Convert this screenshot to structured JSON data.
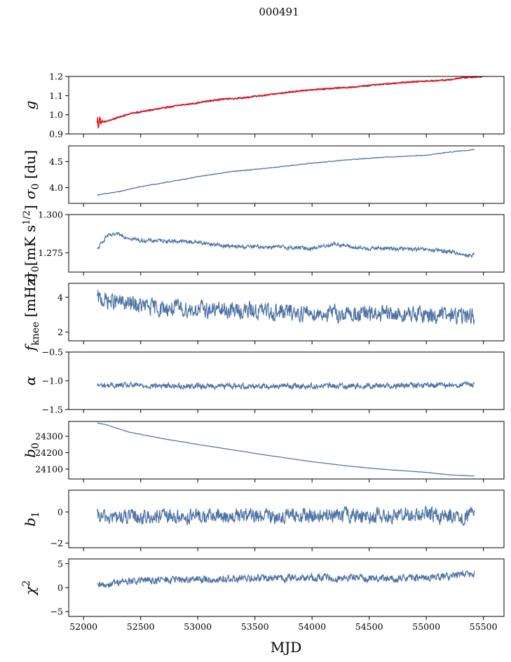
{
  "suptitle": "000491",
  "xlabel": "MJD",
  "x_ticks": [
    "52000",
    "52500",
    "53000",
    "53500",
    "54000",
    "54500",
    "55000",
    "55500"
  ],
  "colors": {
    "series": "#4c72a4",
    "overlay": "#ff0000",
    "axes": "#000000"
  },
  "chart_data": [
    {
      "type": "line",
      "ylabel": "g",
      "xlim": [
        51870,
        55680
      ],
      "ylim": [
        0.9,
        1.2
      ],
      "yticks": [
        "0.9",
        "1.0",
        "1.1",
        "1.2"
      ],
      "ytick_values": [
        0.9,
        1.0,
        1.1,
        1.2
      ],
      "series": [
        {
          "values_x": [
            52120,
            52200,
            52300,
            52400,
            52600,
            52800,
            53000,
            53200,
            53400,
            53600,
            53800,
            54000,
            54200,
            54400,
            54600,
            54800,
            55000,
            55200,
            55300,
            55420
          ],
          "values_y": [
            0.963,
            0.965,
            0.985,
            1.005,
            1.025,
            1.045,
            1.062,
            1.08,
            1.088,
            1.102,
            1.118,
            1.13,
            1.138,
            1.146,
            1.158,
            1.168,
            1.175,
            1.182,
            1.192,
            1.197
          ],
          "noise": 0.004
        },
        {
          "name": "",
          "style": "overlay",
          "values_x": [
            52120,
            52200,
            52300,
            52400,
            52600,
            52800,
            53000,
            53200,
            53400,
            53600,
            53800,
            54000,
            54200,
            54400,
            54600,
            54800,
            55000,
            55200,
            55300,
            55500
          ],
          "values_y": [
            0.963,
            0.966,
            0.986,
            1.005,
            1.026,
            1.046,
            1.063,
            1.081,
            1.089,
            1.103,
            1.119,
            1.131,
            1.139,
            1.147,
            1.159,
            1.169,
            1.176,
            1.183,
            1.193,
            1.198
          ],
          "noise": 0.003,
          "burst_x": 52140,
          "burst_amp": 0.035
        }
      ]
    },
    {
      "type": "line",
      "ylabel": "σ0 [du]",
      "xlim": [
        51870,
        55680
      ],
      "ylim": [
        3.7,
        4.8
      ],
      "yticks": [
        "4.0",
        "4.5"
      ],
      "ytick_values": [
        4.0,
        4.5
      ],
      "series": [
        {
          "values_x": [
            52120,
            52300,
            52500,
            52800,
            53000,
            53300,
            53600,
            54000,
            54300,
            54600,
            55000,
            55200,
            55420
          ],
          "values_y": [
            3.86,
            3.92,
            4.02,
            4.13,
            4.21,
            4.31,
            4.37,
            4.47,
            4.53,
            4.58,
            4.62,
            4.68,
            4.73
          ],
          "noise": 0.006
        }
      ]
    },
    {
      "type": "line",
      "ylabel": "σ0[mK s^1/2]",
      "xlim": [
        51870,
        55680
      ],
      "ylim": [
        1.2625,
        1.3
      ],
      "yticks": [
        "1.275",
        "1.300"
      ],
      "ytick_values": [
        1.275,
        1.3
      ],
      "series": [
        {
          "values_x": [
            52120,
            52200,
            52300,
            52500,
            52700,
            53000,
            53300,
            53600,
            54000,
            54200,
            54400,
            54700,
            55000,
            55200,
            55400,
            55420
          ],
          "values_y": [
            1.277,
            1.286,
            1.287,
            1.283,
            1.283,
            1.282,
            1.279,
            1.279,
            1.278,
            1.281,
            1.278,
            1.278,
            1.277,
            1.276,
            1.273,
            1.275
          ],
          "noise": 0.0012
        }
      ]
    },
    {
      "type": "line",
      "ylabel": "fknee [mHz]",
      "xlim": [
        51870,
        55680
      ],
      "ylim": [
        1.5,
        4.8
      ],
      "yticks": [
        "2",
        "4"
      ],
      "ytick_values": [
        2,
        4
      ],
      "series": [
        {
          "values_x": [
            52120,
            52300,
            52600,
            53000,
            53500,
            54000,
            54500,
            55000,
            55420
          ],
          "values_y": [
            3.9,
            3.7,
            3.4,
            3.3,
            3.2,
            3.1,
            3.0,
            3.0,
            2.9
          ],
          "noise": 0.45
        }
      ]
    },
    {
      "type": "line",
      "ylabel": "α",
      "xlim": [
        51870,
        55680
      ],
      "ylim": [
        -1.5,
        -0.5
      ],
      "yticks": [
        "−1.5",
        "−1.0",
        "−0.5"
      ],
      "ytick_values": [
        -1.5,
        -1.0,
        -0.5
      ],
      "series": [
        {
          "values_x": [
            52120,
            53000,
            54000,
            55000,
            55420
          ],
          "values_y": [
            -1.08,
            -1.09,
            -1.09,
            -1.08,
            -1.07
          ],
          "noise": 0.045
        }
      ]
    },
    {
      "type": "line",
      "ylabel": "b0",
      "xlim": [
        51870,
        55680
      ],
      "ylim": [
        24040,
        24390
      ],
      "yticks": [
        "24100",
        "24200",
        "24300"
      ],
      "ytick_values": [
        24100,
        24200,
        24300
      ],
      "series": [
        {
          "values_x": [
            52120,
            52200,
            52400,
            52700,
            53000,
            53300,
            53600,
            54000,
            54300,
            54600,
            55000,
            55200,
            55420
          ],
          "values_y": [
            24380,
            24370,
            24325,
            24285,
            24250,
            24218,
            24185,
            24145,
            24120,
            24100,
            24080,
            24065,
            24058
          ],
          "noise": 0.8
        }
      ]
    },
    {
      "type": "line",
      "ylabel": "b1",
      "xlim": [
        51870,
        55680
      ],
      "ylim": [
        -2.3,
        1.4
      ],
      "yticks": [
        "−2",
        "0"
      ],
      "ytick_values": [
        -2,
        0
      ],
      "series": [
        {
          "values_x": [
            52120,
            53000,
            54000,
            55000,
            55420
          ],
          "values_y": [
            -0.35,
            -0.3,
            -0.25,
            -0.2,
            -0.25
          ],
          "noise": 0.45
        }
      ]
    },
    {
      "type": "line",
      "ylabel": "χ2",
      "xlim": [
        51870,
        55680
      ],
      "ylim": [
        -6,
        6
      ],
      "yticks": [
        "−5",
        "0",
        "5"
      ],
      "ytick_values": [
        -5,
        0,
        5
      ],
      "series": [
        {
          "values_x": [
            52120,
            52300,
            52700,
            53000,
            53500,
            54000,
            54500,
            55000,
            55420
          ],
          "values_y": [
            0.2,
            1.2,
            1.6,
            1.7,
            1.9,
            2.1,
            2.0,
            2.0,
            2.9
          ],
          "noise": 0.75
        }
      ]
    }
  ]
}
